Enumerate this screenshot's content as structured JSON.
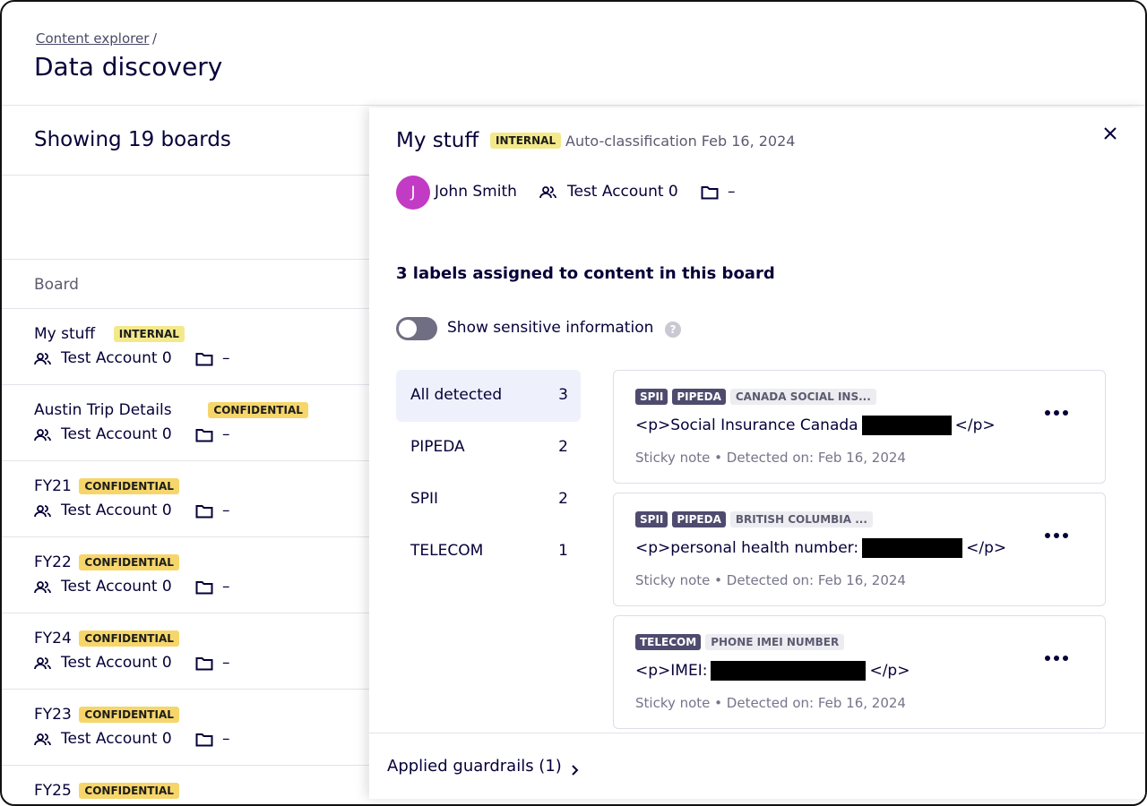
{
  "header": {
    "breadcrumb": "Content explorer",
    "separator": "/",
    "title": "Data discovery"
  },
  "list": {
    "heading": "Showing 19 boards",
    "column": "Board",
    "rows": [
      {
        "name": "My stuff",
        "tag": "INTERNAL",
        "account": "Test Account 0",
        "folder": "–"
      },
      {
        "name": "Austin Trip Details",
        "tag": "CONFIDENTIAL",
        "account": "Test Account 0",
        "folder": "–"
      },
      {
        "name": "FY21",
        "tag": "CONFIDENTIAL",
        "account": "Test Account 0",
        "folder": "–"
      },
      {
        "name": "FY22",
        "tag": "CONFIDENTIAL",
        "account": "Test Account 0",
        "folder": "–"
      },
      {
        "name": "FY24",
        "tag": "CONFIDENTIAL",
        "account": "Test Account 0",
        "folder": "–"
      },
      {
        "name": "FY23",
        "tag": "CONFIDENTIAL",
        "account": "Test Account 0",
        "folder": "–"
      },
      {
        "name": "FY25",
        "tag": "CONFIDENTIAL"
      }
    ]
  },
  "panel": {
    "title": "My stuff",
    "tag": "INTERNAL",
    "classification": "Auto-classification Feb 16, 2024",
    "owner_initial": "J",
    "owner": "John Smith",
    "account": "Test Account 0",
    "folder": "–",
    "labels_heading": "3 labels assigned to content in this board",
    "toggle_label": "Show sensitive information",
    "help": "?",
    "filters": [
      {
        "name": "All detected",
        "count": "3"
      },
      {
        "name": "PIPEDA",
        "count": "2"
      },
      {
        "name": "SPII",
        "count": "2"
      },
      {
        "name": "TELECOM",
        "count": "1"
      }
    ],
    "findings": [
      {
        "tags": [
          "SPII",
          "PIPEDA"
        ],
        "category": "CANADA SOCIAL INS...",
        "text_before": "<p>Social Insurance Canada",
        "text_after": "</p>",
        "meta": "Sticky note • Detected on: Feb 16, 2024"
      },
      {
        "tags": [
          "SPII",
          "PIPEDA"
        ],
        "category": "BRITISH COLUMBIA ...",
        "text_before": "<p>personal health number:",
        "text_after": "</p>",
        "meta": "Sticky note • Detected on: Feb 16, 2024"
      },
      {
        "tags": [
          "TELECOM"
        ],
        "category": "PHONE IMEI NUMBER",
        "text_before": "<p>IMEI:",
        "text_after": "</p>",
        "meta": "Sticky note • Detected on: Feb 16, 2024"
      }
    ],
    "footer": "Applied guardrails (1)"
  }
}
